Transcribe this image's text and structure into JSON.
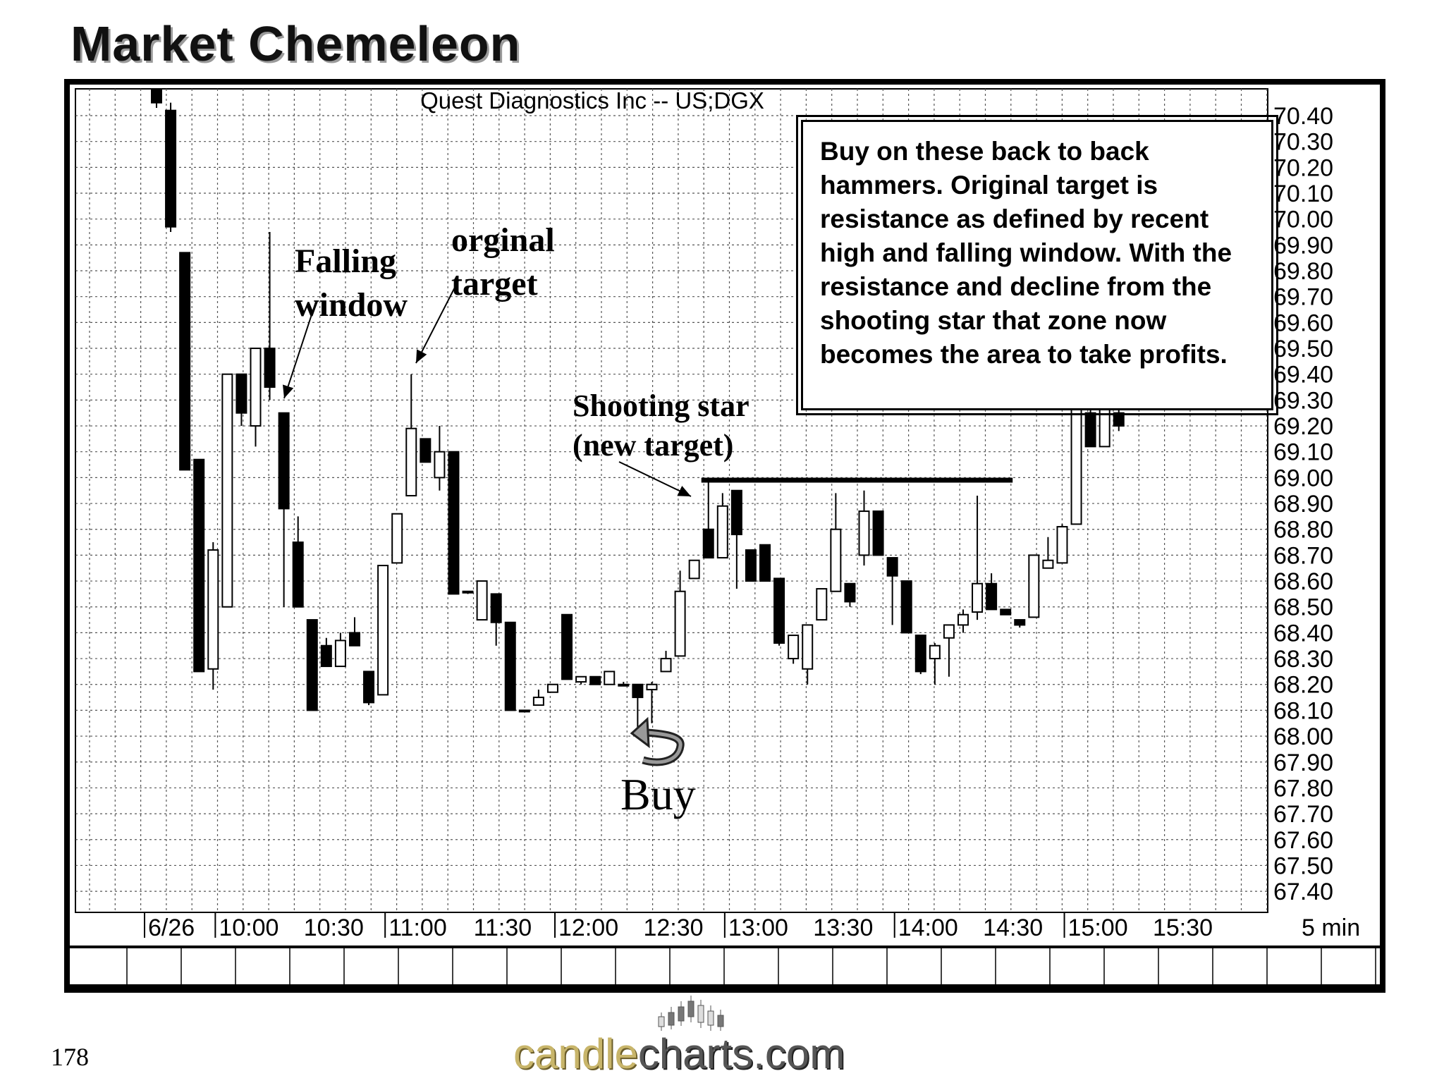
{
  "slide": {
    "title": "Market Chemeleon",
    "page_number": "178",
    "logo": {
      "prefix": "candle",
      "suffix": "charts.com"
    }
  },
  "annotations": {
    "falling_window": "Falling window",
    "falling_window_l1": "Falling",
    "falling_window_l2": "window",
    "original_target_l1": "orginal",
    "original_target_l2": "target",
    "shooting_star_l1": "Shooting star",
    "shooting_star_l2": "(new target)",
    "buy": "Buy",
    "callout": "Buy on these back to back hammers. Original target is resistance as defined by recent high and falling window. With the resistance and decline from the shooting star that zone now becomes the area to take profits."
  },
  "chart_data": {
    "type": "candlestick",
    "title": "Quest  Diagnostics  Inc  --  US;DGX",
    "interval_label": "5   min",
    "date_label": "6/26",
    "x_tick_labels": [
      "10:00",
      "10:30",
      "11:00",
      "11:30",
      "12:00",
      "12:30",
      "13:00",
      "13:30",
      "14:00",
      "14:30",
      "15:00",
      "15:30"
    ],
    "y_tick_labels": [
      "70.40",
      "70.30",
      "70.20",
      "70.10",
      "70.00",
      "69.90",
      "69.80",
      "69.70",
      "69.60",
      "69.50",
      "69.40",
      "69.30",
      "69.20",
      "69.10",
      "69.00",
      "68.90",
      "68.80",
      "68.70",
      "68.60",
      "68.50",
      "68.40",
      "68.30",
      "68.20",
      "68.10",
      "68.00",
      "67.90",
      "67.80",
      "67.70",
      "67.60",
      "67.50",
      "67.40"
    ],
    "ylim": [
      67.35,
      70.45
    ],
    "resistance_level": 68.99,
    "grid": true,
    "colors": {
      "up": "#ffffff",
      "down": "#000000",
      "outline": "#000000"
    },
    "candles": [
      {
        "t": "09:35",
        "o": 70.5,
        "h": 70.5,
        "l": 70.43,
        "c": 70.45
      },
      {
        "t": "09:40",
        "o": 70.42,
        "h": 70.45,
        "l": 69.95,
        "c": 69.97
      },
      {
        "t": "09:45",
        "o": 69.87,
        "h": 69.87,
        "l": 69.03,
        "c": 69.03
      },
      {
        "t": "09:50",
        "o": 69.07,
        "h": 69.07,
        "l": 68.25,
        "c": 68.25
      },
      {
        "t": "09:55",
        "o": 68.26,
        "h": 68.75,
        "l": 68.18,
        "c": 68.72
      },
      {
        "t": "10:00",
        "o": 68.5,
        "h": 69.4,
        "l": 68.5,
        "c": 69.4
      },
      {
        "t": "10:05",
        "o": 69.4,
        "h": 69.4,
        "l": 69.2,
        "c": 69.25
      },
      {
        "t": "10:10",
        "o": 69.2,
        "h": 69.5,
        "l": 69.12,
        "c": 69.5
      },
      {
        "t": "10:15",
        "o": 69.5,
        "h": 69.95,
        "l": 69.3,
        "c": 69.35
      },
      {
        "t": "10:20",
        "o": 69.25,
        "h": 69.25,
        "l": 68.5,
        "c": 68.88
      },
      {
        "t": "10:25",
        "o": 68.75,
        "h": 68.85,
        "l": 68.5,
        "c": 68.5
      },
      {
        "t": "10:30",
        "o": 68.45,
        "h": 68.45,
        "l": 68.1,
        "c": 68.1
      },
      {
        "t": "10:35",
        "o": 68.35,
        "h": 68.38,
        "l": 68.27,
        "c": 68.27
      },
      {
        "t": "10:40",
        "o": 68.27,
        "h": 68.4,
        "l": 68.27,
        "c": 68.37
      },
      {
        "t": "10:45",
        "o": 68.4,
        "h": 68.46,
        "l": 68.35,
        "c": 68.35
      },
      {
        "t": "10:50",
        "o": 68.25,
        "h": 68.25,
        "l": 68.12,
        "c": 68.13
      },
      {
        "t": "10:55",
        "o": 68.16,
        "h": 68.66,
        "l": 68.16,
        "c": 68.66
      },
      {
        "t": "11:00",
        "o": 68.67,
        "h": 68.86,
        "l": 68.67,
        "c": 68.86
      },
      {
        "t": "11:05",
        "o": 68.93,
        "h": 69.4,
        "l": 68.93,
        "c": 69.19
      },
      {
        "t": "11:10",
        "o": 69.15,
        "h": 69.15,
        "l": 69.06,
        "c": 69.06
      },
      {
        "t": "11:15",
        "o": 69.0,
        "h": 69.2,
        "l": 68.95,
        "c": 69.1
      },
      {
        "t": "11:20",
        "o": 69.1,
        "h": 69.1,
        "l": 68.55,
        "c": 68.55
      },
      {
        "t": "11:25",
        "o": 68.56,
        "h": 68.56,
        "l": 68.55,
        "c": 68.56
      },
      {
        "t": "11:30",
        "o": 68.45,
        "h": 68.6,
        "l": 68.45,
        "c": 68.6
      },
      {
        "t": "11:35",
        "o": 68.55,
        "h": 68.55,
        "l": 68.35,
        "c": 68.44
      },
      {
        "t": "11:40",
        "o": 68.44,
        "h": 68.44,
        "l": 68.1,
        "c": 68.1
      },
      {
        "t": "11:45",
        "o": 68.1,
        "h": 68.1,
        "l": 68.1,
        "c": 68.1
      },
      {
        "t": "11:50",
        "o": 68.12,
        "h": 68.18,
        "l": 68.12,
        "c": 68.15
      },
      {
        "t": "11:55",
        "o": 68.17,
        "h": 68.2,
        "l": 68.17,
        "c": 68.2
      },
      {
        "t": "12:00",
        "o": 68.47,
        "h": 68.47,
        "l": 68.22,
        "c": 68.22
      },
      {
        "t": "12:05",
        "o": 68.21,
        "h": 68.23,
        "l": 68.2,
        "c": 68.23
      },
      {
        "t": "12:10",
        "o": 68.23,
        "h": 68.23,
        "l": 68.2,
        "c": 68.2
      },
      {
        "t": "12:15",
        "o": 68.2,
        "h": 68.25,
        "l": 68.2,
        "c": 68.25
      },
      {
        "t": "12:20",
        "o": 68.2,
        "h": 68.21,
        "l": 68.2,
        "c": 68.2
      },
      {
        "t": "12:25",
        "o": 68.2,
        "h": 68.2,
        "l": 68.02,
        "c": 68.15
      },
      {
        "t": "12:30",
        "o": 68.18,
        "h": 68.21,
        "l": 68.05,
        "c": 68.2
      },
      {
        "t": "12:35",
        "o": 68.25,
        "h": 68.33,
        "l": 68.25,
        "c": 68.3
      },
      {
        "t": "12:40",
        "o": 68.31,
        "h": 68.64,
        "l": 68.31,
        "c": 68.56
      },
      {
        "t": "12:45",
        "o": 68.61,
        "h": 68.68,
        "l": 68.61,
        "c": 68.68
      },
      {
        "t": "12:50",
        "o": 68.8,
        "h": 68.99,
        "l": 68.69,
        "c": 68.69
      },
      {
        "t": "12:55",
        "o": 68.69,
        "h": 68.94,
        "l": 68.69,
        "c": 68.89
      },
      {
        "t": "13:00",
        "o": 68.95,
        "h": 68.95,
        "l": 68.57,
        "c": 68.78
      },
      {
        "t": "13:05",
        "o": 68.72,
        "h": 68.72,
        "l": 68.6,
        "c": 68.6
      },
      {
        "t": "13:10",
        "o": 68.74,
        "h": 68.74,
        "l": 68.6,
        "c": 68.6
      },
      {
        "t": "13:15",
        "o": 68.61,
        "h": 68.61,
        "l": 68.35,
        "c": 68.36
      },
      {
        "t": "13:20",
        "o": 68.3,
        "h": 68.39,
        "l": 68.28,
        "c": 68.39
      },
      {
        "t": "13:25",
        "o": 68.26,
        "h": 68.43,
        "l": 68.2,
        "c": 68.43
      },
      {
        "t": "13:30",
        "o": 68.45,
        "h": 68.57,
        "l": 68.45,
        "c": 68.57
      },
      {
        "t": "13:35",
        "o": 68.56,
        "h": 68.94,
        "l": 68.56,
        "c": 68.8
      },
      {
        "t": "13:40",
        "o": 68.59,
        "h": 68.59,
        "l": 68.5,
        "c": 68.52
      },
      {
        "t": "13:45",
        "o": 68.7,
        "h": 68.95,
        "l": 68.66,
        "c": 68.87
      },
      {
        "t": "13:50",
        "o": 68.87,
        "h": 68.87,
        "l": 68.7,
        "c": 68.7
      },
      {
        "t": "13:55",
        "o": 68.69,
        "h": 68.69,
        "l": 68.43,
        "c": 68.62
      },
      {
        "t": "14:00",
        "o": 68.6,
        "h": 68.6,
        "l": 68.4,
        "c": 68.4
      },
      {
        "t": "14:05",
        "o": 68.39,
        "h": 68.39,
        "l": 68.24,
        "c": 68.25
      },
      {
        "t": "14:10",
        "o": 68.3,
        "h": 68.36,
        "l": 68.2,
        "c": 68.35
      },
      {
        "t": "14:15",
        "o": 68.38,
        "h": 68.43,
        "l": 68.23,
        "c": 68.43
      },
      {
        "t": "14:20",
        "o": 68.43,
        "h": 68.49,
        "l": 68.4,
        "c": 68.47
      },
      {
        "t": "14:25",
        "o": 68.48,
        "h": 68.93,
        "l": 68.45,
        "c": 68.59
      },
      {
        "t": "14:30",
        "o": 68.59,
        "h": 68.63,
        "l": 68.49,
        "c": 68.49
      },
      {
        "t": "14:35",
        "o": 68.49,
        "h": 68.49,
        "l": 68.47,
        "c": 68.47
      },
      {
        "t": "14:40",
        "o": 68.45,
        "h": 68.45,
        "l": 68.42,
        "c": 68.43
      },
      {
        "t": "14:45",
        "o": 68.46,
        "h": 68.7,
        "l": 68.46,
        "c": 68.7
      },
      {
        "t": "14:50",
        "o": 68.65,
        "h": 68.77,
        "l": 68.65,
        "c": 68.68
      },
      {
        "t": "14:55",
        "o": 68.67,
        "h": 68.82,
        "l": 68.67,
        "c": 68.81
      },
      {
        "t": "15:00",
        "o": 68.82,
        "h": 69.3,
        "l": 68.82,
        "c": 69.3
      },
      {
        "t": "15:05",
        "o": 69.25,
        "h": 69.3,
        "l": 69.12,
        "c": 69.12
      },
      {
        "t": "15:10",
        "o": 69.12,
        "h": 69.3,
        "l": 69.12,
        "c": 69.28
      },
      {
        "t": "15:15",
        "o": 69.25,
        "h": 69.3,
        "l": 69.18,
        "c": 69.2
      }
    ]
  }
}
